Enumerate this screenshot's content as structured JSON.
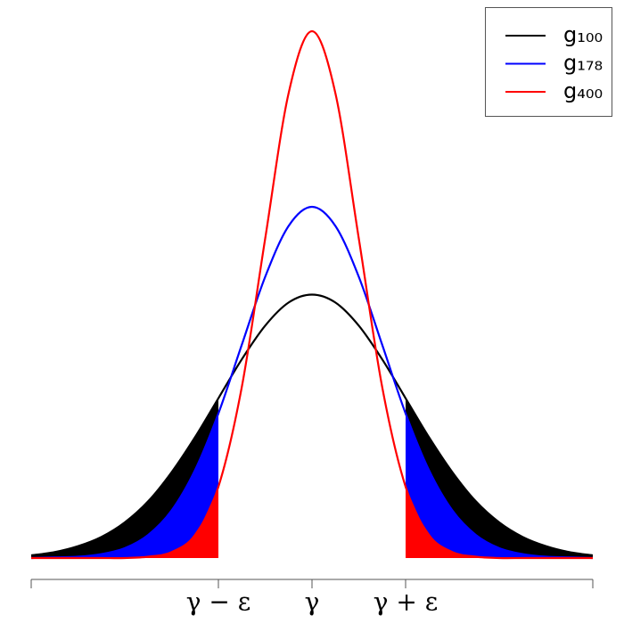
{
  "chart_data": {
    "type": "line",
    "x": [
      -3,
      -2.75,
      -2.5,
      -2.25,
      -2,
      -1.75,
      -1.5,
      -1.25,
      -1,
      -0.75,
      -0.5,
      -0.25,
      0,
      0.25,
      0.5,
      0.75,
      1,
      1.25,
      1.5,
      1.75,
      2,
      2.25,
      2.5,
      2.75,
      3
    ],
    "series": [
      {
        "name": "g₁₀₀",
        "color": "#000000",
        "values": [
          0.004,
          0.009,
          0.018,
          0.032,
          0.054,
          0.086,
          0.13,
          0.183,
          0.242,
          0.301,
          0.352,
          0.387,
          0.399,
          0.387,
          0.352,
          0.301,
          0.242,
          0.183,
          0.13,
          0.086,
          0.054,
          0.032,
          0.018,
          0.009,
          0.004
        ]
      },
      {
        "name": "g₁₇₈",
        "color": "#0000ff",
        "values": [
          0.0,
          0.001,
          0.002,
          0.006,
          0.015,
          0.035,
          0.072,
          0.133,
          0.219,
          0.323,
          0.426,
          0.503,
          0.532,
          0.503,
          0.426,
          0.323,
          0.219,
          0.133,
          0.072,
          0.035,
          0.015,
          0.006,
          0.002,
          0.001,
          0.0
        ]
      },
      {
        "name": "g₄₀₀",
        "color": "#ff0000",
        "values": [
          0,
          0,
          0,
          0,
          0,
          0.002,
          0.009,
          0.035,
          0.108,
          0.259,
          0.484,
          0.704,
          0.798,
          0.704,
          0.484,
          0.259,
          0.108,
          0.035,
          0.009,
          0.002,
          0,
          0,
          0,
          0,
          0
        ]
      }
    ],
    "xlim": [
      -3,
      3
    ],
    "ylim": [
      0,
      0.83
    ],
    "xticks": [
      {
        "value": -1,
        "label": "γ − ε"
      },
      {
        "value": 0,
        "label": "γ"
      },
      {
        "value": 1,
        "label": "γ + ε"
      }
    ],
    "shade_tails": true,
    "legend": "top-right"
  }
}
